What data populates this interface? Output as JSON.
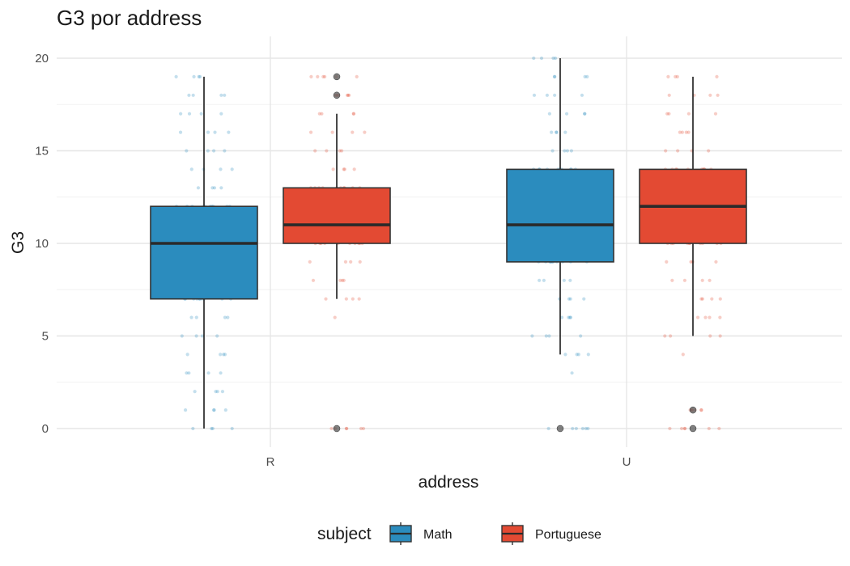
{
  "chart_data": {
    "type": "box",
    "title": "G3 por address",
    "xlabel": "address",
    "ylabel": "G3",
    "ylim": [
      -1,
      21
    ],
    "y_ticks": [
      0,
      5,
      10,
      15,
      20
    ],
    "categories": [
      "R",
      "U"
    ],
    "grid": true,
    "legend": {
      "title": "subject",
      "position": "bottom"
    },
    "series": [
      {
        "name": "Math",
        "color": "#2B8CBE",
        "boxes": [
          {
            "category": "R",
            "whisker_low": 0,
            "q1": 7,
            "median": 10,
            "q3": 12,
            "whisker_high": 19,
            "outliers": []
          },
          {
            "category": "U",
            "whisker_low": 4,
            "q1": 9,
            "median": 11,
            "q3": 14,
            "whisker_high": 20,
            "outliers": [
              0
            ]
          }
        ]
      },
      {
        "name": "Portuguese",
        "color": "#E34A33",
        "boxes": [
          {
            "category": "R",
            "whisker_low": 7,
            "q1": 10,
            "median": 11,
            "q3": 13,
            "whisker_high": 17,
            "outliers": [
              0,
              18,
              19
            ]
          },
          {
            "category": "U",
            "whisker_low": 5,
            "q1": 10,
            "median": 12,
            "q3": 14,
            "whisker_high": 19,
            "outliers": [
              0,
              1
            ]
          }
        ]
      }
    ]
  }
}
